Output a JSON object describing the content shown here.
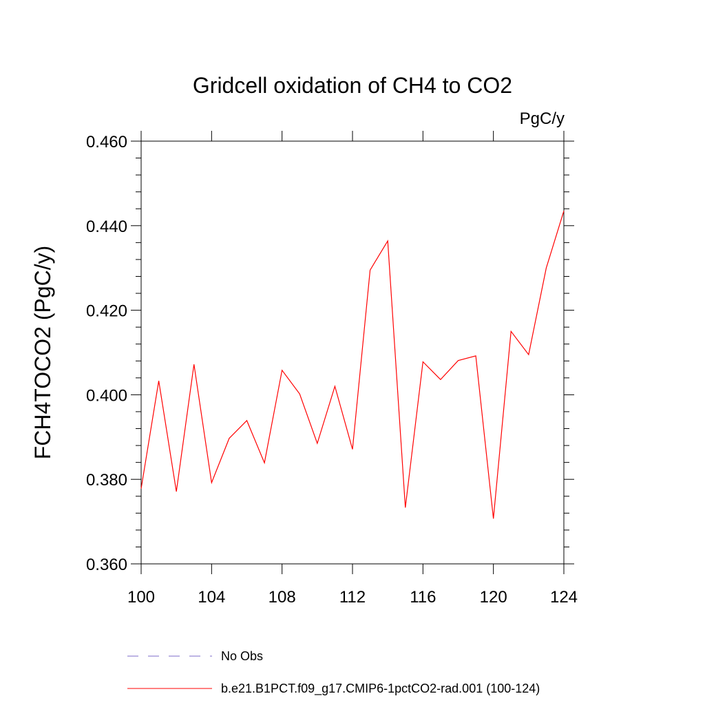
{
  "chart_data": {
    "type": "line",
    "title": "Gridcell oxidation of CH4 to CO2",
    "units_label": "PgC/y",
    "ylabel": "FCH4TOCO2  (PgC/y)",
    "xlabel": "",
    "xlim": [
      100,
      124
    ],
    "ylim": [
      0.36,
      0.46
    ],
    "x_ticks": [
      100,
      104,
      108,
      112,
      116,
      120,
      124
    ],
    "x_tick_labels": [
      "100",
      "104",
      "108",
      "112",
      "116",
      "120",
      "124"
    ],
    "y_ticks": [
      0.36,
      0.38,
      0.4,
      0.42,
      0.44,
      0.46
    ],
    "y_tick_labels": [
      "0.360",
      "0.380",
      "0.400",
      "0.420",
      "0.440",
      "0.460"
    ],
    "grid": false,
    "legend_position": "bottom",
    "series": [
      {
        "name": "b.e21.B1PCT.f09_g17.CMIP6-1pctCO2-rad.001 (100-124)",
        "color": "#ff0000",
        "dash": "solid",
        "x": [
          100,
          101,
          102,
          103,
          104,
          105,
          106,
          107,
          108,
          109,
          110,
          111,
          112,
          113,
          114,
          115,
          116,
          117,
          118,
          119,
          120,
          121,
          122,
          123,
          124
        ],
        "values": [
          0.3778,
          0.4033,
          0.3771,
          0.4072,
          0.3792,
          0.3897,
          0.3939,
          0.3839,
          0.4058,
          0.4002,
          0.3885,
          0.402,
          0.3871,
          0.4295,
          0.4364,
          0.3733,
          0.4078,
          0.4036,
          0.4081,
          0.4092,
          0.3707,
          0.415,
          0.4095,
          0.43,
          0.4435
        ]
      }
    ],
    "legend": [
      {
        "label": "No Obs",
        "color": "#7b68c8",
        "dash": "dashed"
      },
      {
        "label": "b.e21.B1PCT.f09_g17.CMIP6-1pctCO2-rad.001 (100-124)",
        "color": "#ff0000",
        "dash": "solid"
      }
    ]
  }
}
